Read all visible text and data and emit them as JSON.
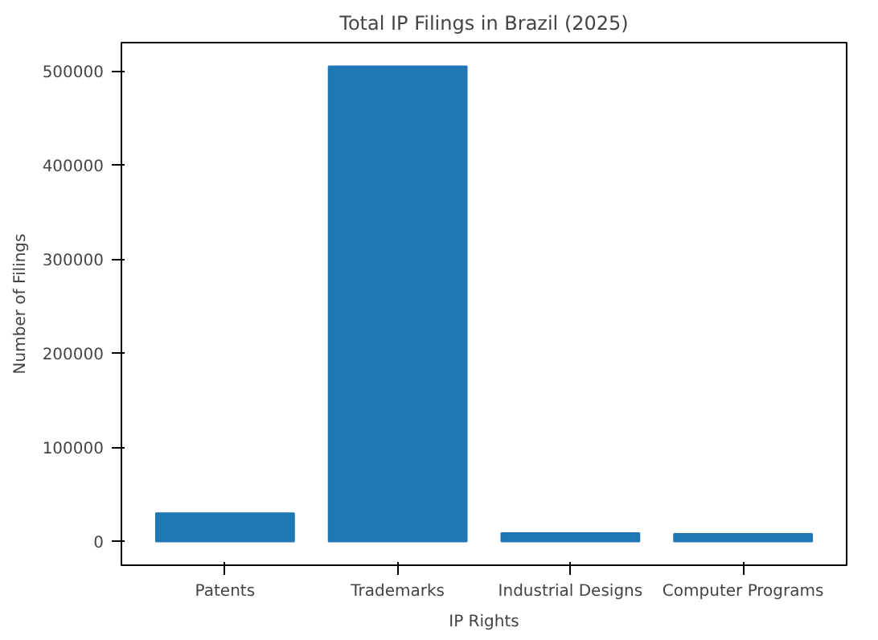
{
  "chart_data": {
    "type": "bar",
    "title": "Total IP Filings in Brazil (2025)",
    "xlabel": "IP Rights",
    "ylabel": "Number of Filings",
    "categories": [
      "Patents",
      "Trademarks",
      "Industrial Designs",
      "Computer Programs"
    ],
    "values": [
      30000,
      505000,
      9000,
      8000
    ],
    "color": "#1f77b4",
    "ylim": [
      -25250,
      530250
    ],
    "yticks": [
      0,
      100000,
      200000,
      300000,
      400000,
      500000
    ],
    "grid": false
  }
}
